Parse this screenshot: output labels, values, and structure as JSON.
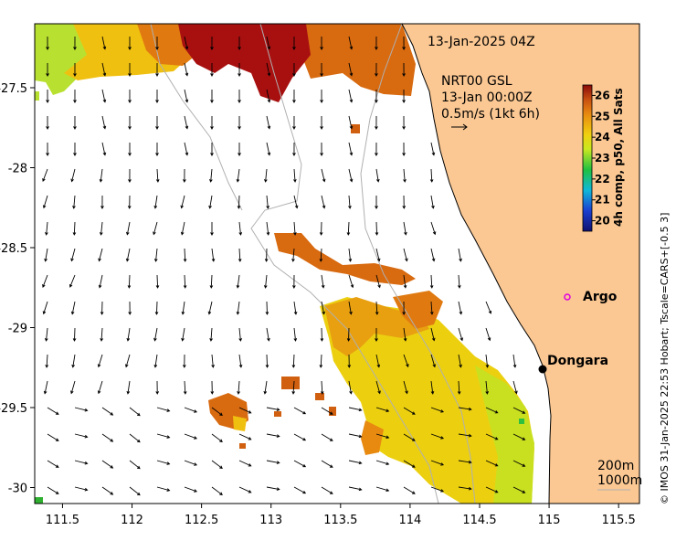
{
  "map": {
    "timestamp": "13-Jan-2025 04Z",
    "current_product": "NRT00 GSL",
    "current_time": "13-Jan 00:00Z",
    "current_scale": "0.5m/s (1kt 6h)",
    "x_ticks": [
      "111.5",
      "112",
      "112.5",
      "113",
      "113.5",
      "114",
      "114.5",
      "115",
      "115.5"
    ],
    "y_ticks": [
      "-27.5",
      "-28",
      "-28.5",
      "-29",
      "-29.5",
      "-30"
    ],
    "x_range": [
      111.3,
      115.65
    ],
    "y_range": [
      -30.1,
      -27.1
    ],
    "land_color": "#fbc893",
    "colorbar": {
      "label": "4h comp, p50, All Sats",
      "ticks": [
        "26",
        "25",
        "24",
        "23",
        "22",
        "21",
        "20"
      ],
      "range": [
        19.5,
        26.5
      ]
    },
    "places": [
      {
        "name": "Argo",
        "lon": 115.05,
        "lat": -28.88,
        "marker": "circle-open-magenta"
      },
      {
        "name": "Dongara",
        "lon": 114.93,
        "lat": -29.25,
        "marker": "dot-black"
      }
    ],
    "isobaths": [
      "200m",
      "1000m"
    ],
    "credit": "© IMOS 31-Jan-2025 22:53 Hobart; Tscale=CARS+[-0.5 3]"
  }
}
